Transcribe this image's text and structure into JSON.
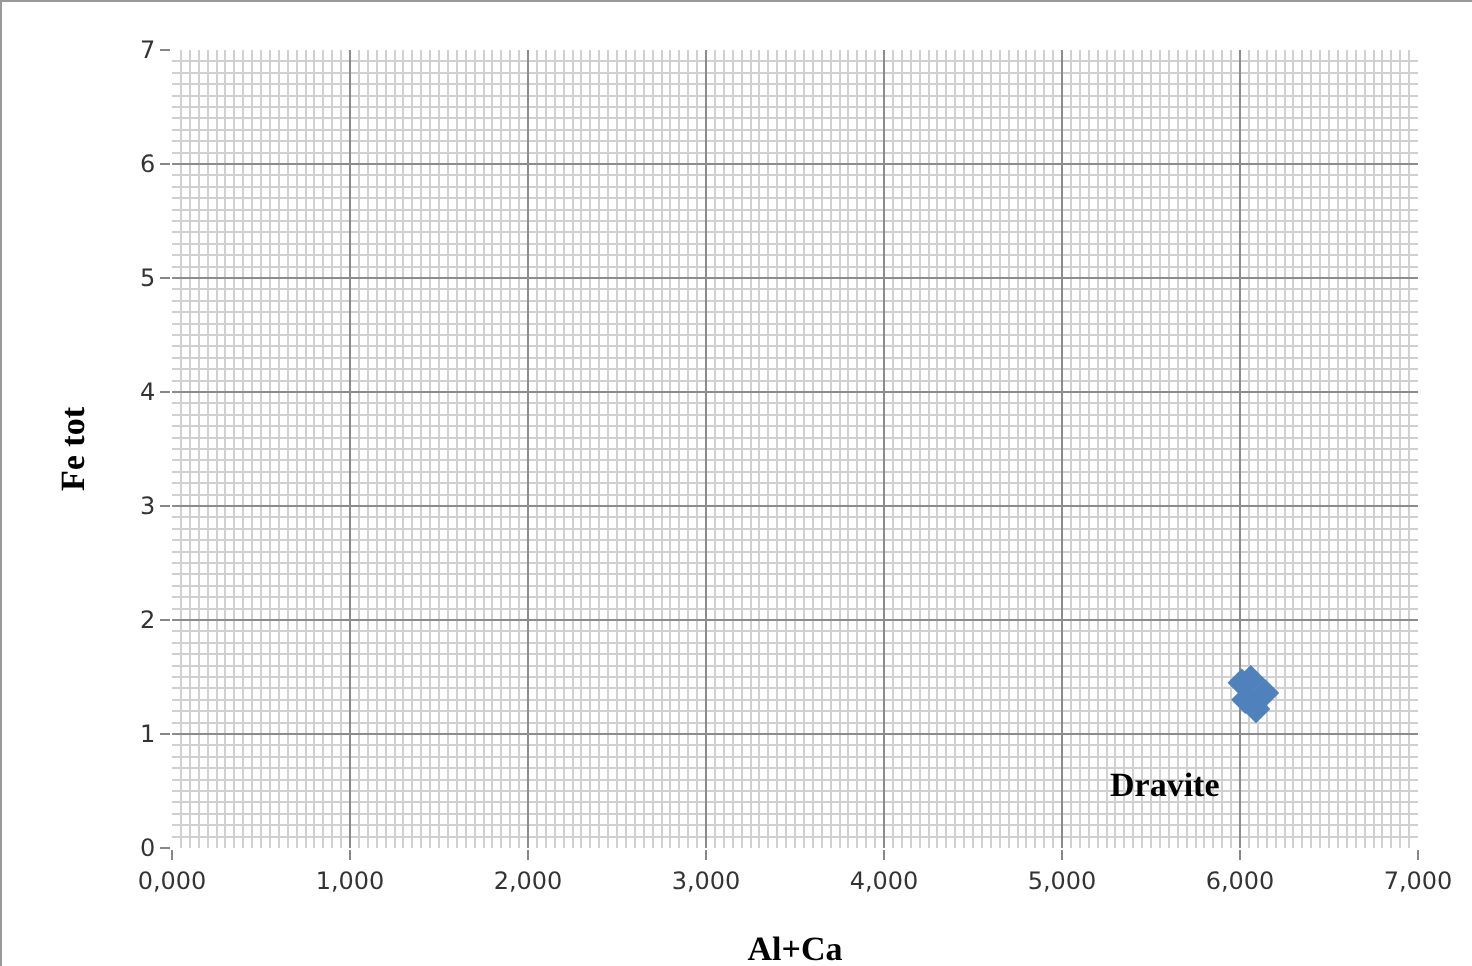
{
  "chart_data": {
    "type": "scatter",
    "xlabel": "Al+Ca",
    "ylabel": "Fe tot",
    "x": [
      6010,
      6060,
      6140,
      6090,
      6030
    ],
    "series": [
      {
        "color": "#4f81bd",
        "values": [
          1.45,
          1.48,
          1.36,
          1.22,
          1.3
        ]
      }
    ],
    "marker": "diamond",
    "grid": true,
    "xlim": [
      0,
      7000
    ],
    "xticks": [
      {
        "value": 0,
        "label": "0,000"
      },
      {
        "value": 1000,
        "label": "1,000"
      },
      {
        "value": 2000,
        "label": "2,000"
      },
      {
        "value": 3000,
        "label": "3,000"
      },
      {
        "value": 4000,
        "label": "4,000"
      },
      {
        "value": 5000,
        "label": "5,000"
      },
      {
        "value": 6000,
        "label": "6,000"
      },
      {
        "value": 7000,
        "label": "7,000"
      }
    ],
    "ylim": [
      0,
      7
    ],
    "yticks": [
      0,
      1,
      2,
      3,
      4,
      5,
      6,
      7
    ],
    "annotations": [
      "Dravite"
    ]
  }
}
